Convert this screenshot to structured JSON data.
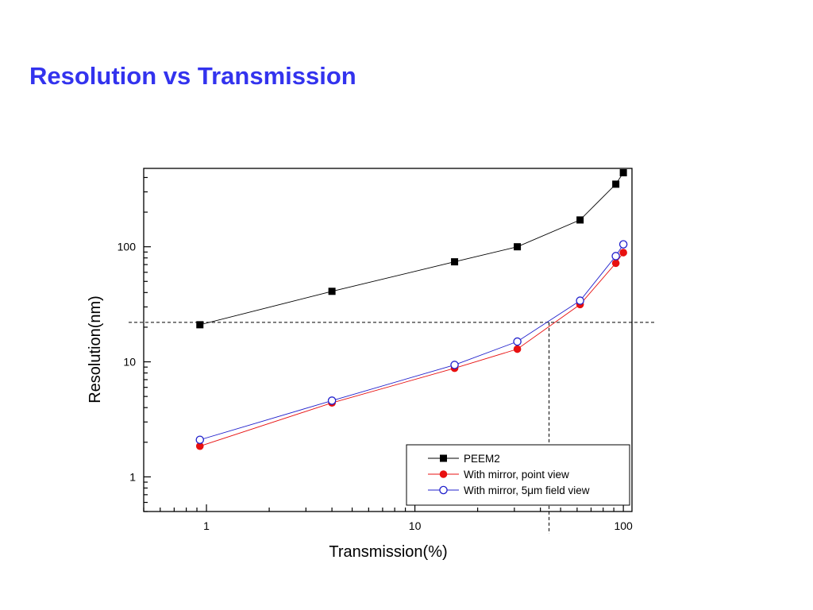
{
  "slide": {
    "title": "Resolution vs Transmission",
    "title_color": "#3333ee"
  },
  "chart_data": {
    "type": "scatter",
    "title": "",
    "xlabel": "Transmission(%)",
    "ylabel": "Resolution(nm)",
    "xscale": "log",
    "yscale": "log",
    "xlim": [
      0.5,
      110
    ],
    "ylim": [
      0.5,
      480
    ],
    "x_tick_labels": [
      "1",
      "10",
      "100"
    ],
    "y_tick_labels": [
      "1",
      "10",
      "100"
    ],
    "grid": false,
    "legend_position": "bottom-right",
    "series": [
      {
        "name": "PEEM2",
        "color": "#000000",
        "marker": "filled-square",
        "x": [
          0.93,
          4.0,
          15.5,
          31,
          62,
          92,
          100
        ],
        "y": [
          21,
          41,
          74,
          100,
          171,
          350,
          440
        ]
      },
      {
        "name": "With mirror, point view",
        "color": "#e81010",
        "marker": "filled-circle",
        "x": [
          0.93,
          4.0,
          15.5,
          31,
          62,
          92,
          100
        ],
        "y": [
          1.85,
          4.4,
          8.8,
          12.9,
          31.5,
          72,
          89
        ]
      },
      {
        "name": "With mirror, 5μm field view",
        "color": "#2020cc",
        "marker": "open-circle",
        "x": [
          0.93,
          4.0,
          15.5,
          31,
          62,
          92,
          100
        ],
        "y": [
          2.1,
          4.6,
          9.4,
          15,
          34,
          83,
          105
        ]
      }
    ],
    "reference_lines": [
      {
        "orientation": "horizontal",
        "y": 22,
        "style": "dashed"
      },
      {
        "orientation": "vertical",
        "x": 44,
        "style": "dashed"
      }
    ]
  }
}
